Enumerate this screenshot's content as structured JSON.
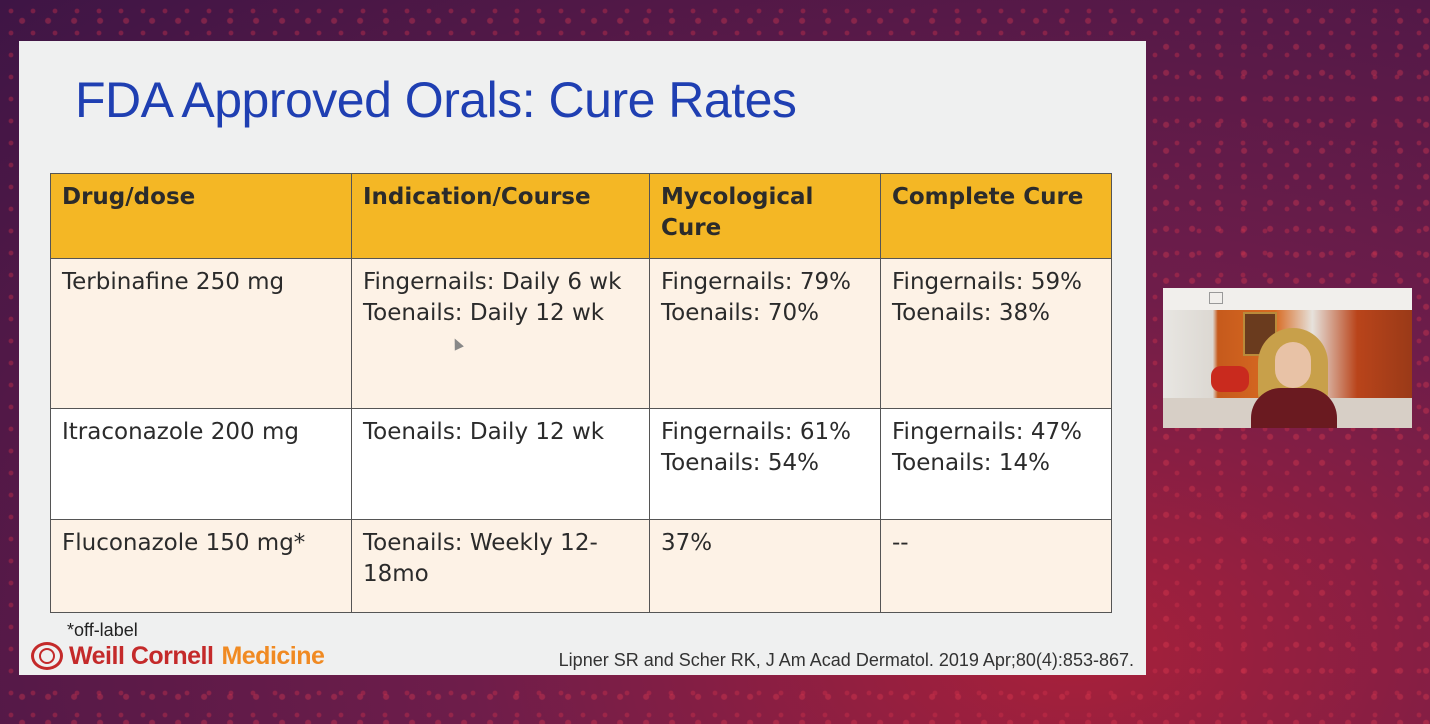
{
  "slide": {
    "title": "FDA Approved Orals: Cure Rates",
    "table": {
      "headers": [
        "Drug/dose",
        "Indication/Course",
        "Mycological Cure",
        "Complete Cure"
      ],
      "rows": [
        {
          "drug": "Terbinafine 250 mg",
          "indication": [
            "Fingernails: Daily 6 wk",
            "Toenails: Daily 12 wk"
          ],
          "mycological": [
            "Fingernails: 79%",
            "Toenails: 70%"
          ],
          "complete": [
            "Fingernails: 59%",
            "Toenails: 38%"
          ]
        },
        {
          "drug": "Itraconazole 200 mg",
          "indication": [
            "Toenails: Daily 12 wk"
          ],
          "mycological": [
            "Fingernails: 61%",
            "Toenails: 54%"
          ],
          "complete": [
            "Fingernails: 47%",
            "Toenails: 14%"
          ]
        },
        {
          "drug": "Fluconazole 150 mg*",
          "indication": [
            "Toenails: Weekly 12-18mo"
          ],
          "mycological": [
            "37%"
          ],
          "complete": [
            "--"
          ]
        }
      ]
    },
    "footnote": "*off-label",
    "logo": {
      "part1": "Weill Cornell",
      "part2": "Medicine"
    },
    "citation": "Lipner SR and Scher RK, J Am Acad Dermatol. 2019 Apr;80(4):853-867."
  },
  "colors": {
    "title": "#1f3fb2",
    "header_bg": "#f4b725",
    "row_alt_bg": "#fdf2e6",
    "logo_red": "#c42a2a",
    "logo_orange": "#f08a22"
  },
  "icons": [
    "weill-cornell-seal-icon",
    "mouse-cursor-icon",
    "camera-icon"
  ]
}
